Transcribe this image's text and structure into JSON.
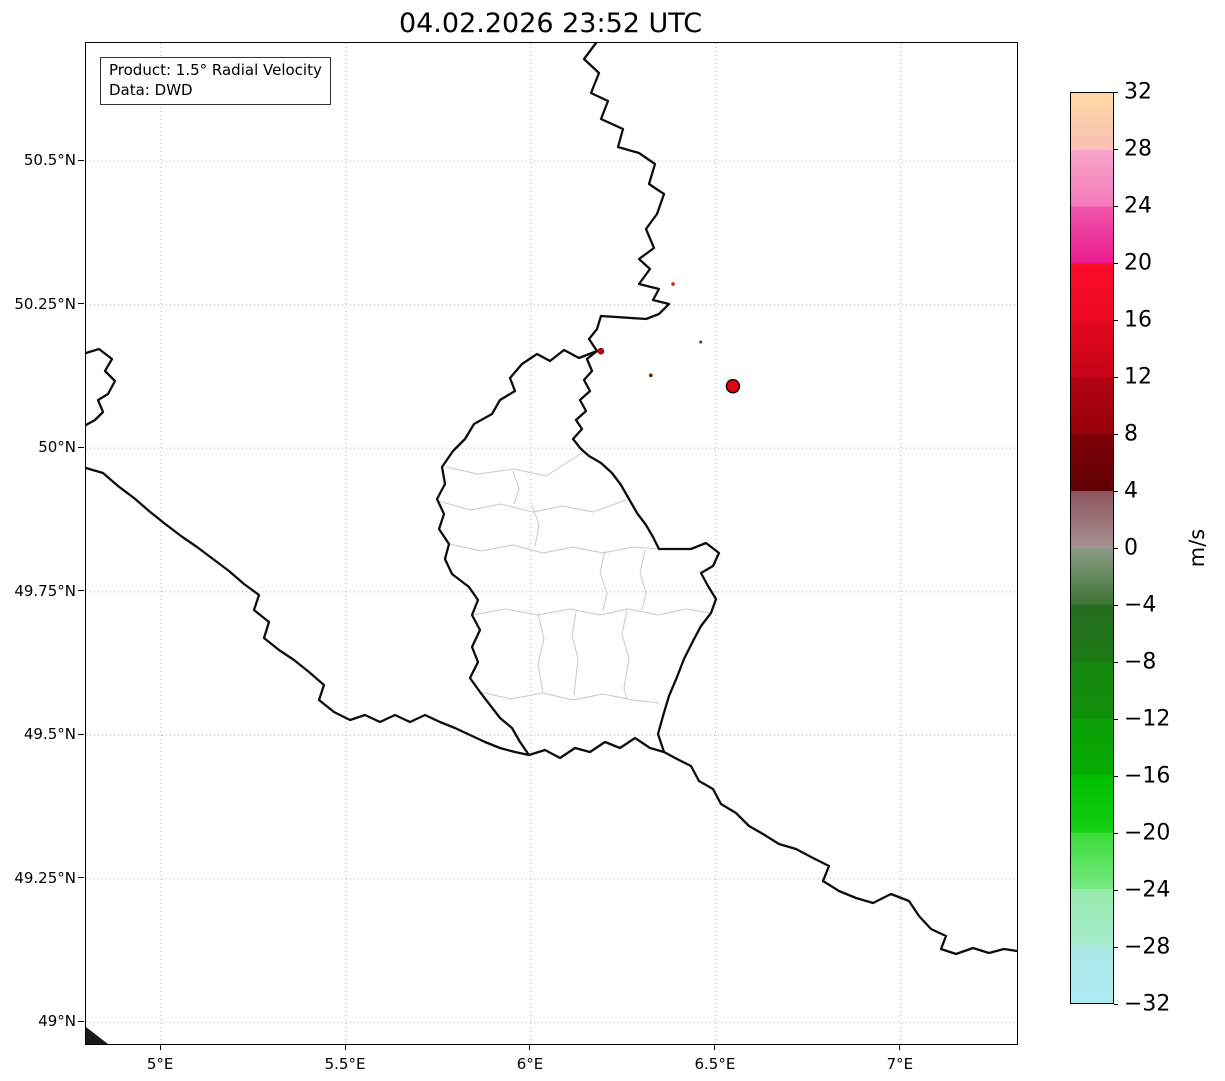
{
  "title": "04.02.2026 23:52 UTC",
  "info_box": {
    "line1": "Product: 1.5° Radial Velocity",
    "line2": "Data: DWD"
  },
  "colorbar": {
    "unit": "m/s",
    "tick_values": [
      32,
      28,
      24,
      20,
      16,
      12,
      8,
      4,
      0,
      -4,
      -8,
      -12,
      -16,
      -20,
      -24,
      -28,
      -32
    ],
    "tick_labels": [
      "32",
      "28",
      "24",
      "20",
      "16",
      "12",
      "8",
      "4",
      "0",
      "−4",
      "−8",
      "−12",
      "−16",
      "−20",
      "−24",
      "−28",
      "−32"
    ],
    "bands": [
      {
        "from": 32,
        "to": 28,
        "colors": [
          "#fcd9a2",
          "#f9bfb4"
        ]
      },
      {
        "from": 28,
        "to": 24,
        "colors": [
          "#f9a6c9",
          "#f478bd"
        ]
      },
      {
        "from": 24,
        "to": 20,
        "colors": [
          "#f055ab",
          "#ec1a90"
        ]
      },
      {
        "from": 20,
        "to": 16,
        "colors": [
          "#fa0e29",
          "#ee0823"
        ]
      },
      {
        "from": 16,
        "to": 12,
        "colors": [
          "#e2061f",
          "#c70417"
        ]
      },
      {
        "from": 12,
        "to": 8,
        "colors": [
          "#b30210",
          "#95010b"
        ]
      },
      {
        "from": 8,
        "to": 4,
        "colors": [
          "#7e0007",
          "#600004"
        ]
      },
      {
        "from": 4,
        "to": 0,
        "colors": [
          "#8d545e",
          "#a89193"
        ]
      },
      {
        "from": 0,
        "to": -4,
        "colors": [
          "#8c9c85",
          "#3d7437"
        ]
      },
      {
        "from": -4,
        "to": -8,
        "colors": [
          "#266c1e",
          "#1d7a16"
        ]
      },
      {
        "from": -8,
        "to": -12,
        "colors": [
          "#17860f",
          "#108f0b"
        ]
      },
      {
        "from": -12,
        "to": -16,
        "colors": [
          "#0b9e07",
          "#04ad03"
        ]
      },
      {
        "from": -16,
        "to": -20,
        "colors": [
          "#00bf00",
          "#12d112"
        ]
      },
      {
        "from": -20,
        "to": -24,
        "colors": [
          "#38dc38",
          "#78e882"
        ]
      },
      {
        "from": -24,
        "to": -28,
        "colors": [
          "#97eaaa",
          "#a6ecd0"
        ]
      },
      {
        "from": -28,
        "to": -32,
        "colors": [
          "#a8e9e6",
          "#adebf4"
        ]
      }
    ]
  },
  "chart_data": {
    "type": "map-radar",
    "title": "04.02.2026 23:52 UTC",
    "product": "1.5° Radial Velocity",
    "source": "DWD",
    "units": "m/s",
    "value_range": [
      -32,
      32
    ],
    "axes": {
      "lon_min": 4.797,
      "lon_max": 7.314,
      "lat_min": 48.962,
      "lat_max": 50.706
    },
    "lon_ticks": [
      {
        "v": 5.0,
        "label": "5°E"
      },
      {
        "v": 5.5,
        "label": "5.5°E"
      },
      {
        "v": 6.0,
        "label": "6°E"
      },
      {
        "v": 6.5,
        "label": "6.5°E"
      },
      {
        "v": 7.0,
        "label": "7°E"
      }
    ],
    "lat_ticks": [
      {
        "v": 50.5,
        "label": "50.5°N"
      },
      {
        "v": 50.25,
        "label": "50.25°N"
      },
      {
        "v": 50.0,
        "label": "50°N"
      },
      {
        "v": 49.75,
        "label": "49.75°N"
      },
      {
        "v": 49.5,
        "label": "49.5°N"
      },
      {
        "v": 49.25,
        "label": "49.25°N"
      },
      {
        "v": 49.0,
        "label": "49°N"
      }
    ],
    "points": [
      {
        "lon": 6.546,
        "lat": 50.108,
        "size": 13,
        "fill": "#e8000d",
        "stroke": "#000000"
      },
      {
        "lon": 6.189,
        "lat": 50.169,
        "size": 6,
        "fill": "#d40000",
        "stroke": "#550000"
      },
      {
        "lon": 6.384,
        "lat": 50.286,
        "size": 3,
        "fill": "#cc2222",
        "stroke": "#cc2222"
      },
      {
        "lon": 6.324,
        "lat": 50.127,
        "size": 3,
        "fill": "#6b1a00",
        "stroke": "#6b1a00"
      },
      {
        "lon": 6.459,
        "lat": 50.185,
        "size": 2.5,
        "fill": "#444444",
        "stroke": "#444444"
      }
    ]
  }
}
